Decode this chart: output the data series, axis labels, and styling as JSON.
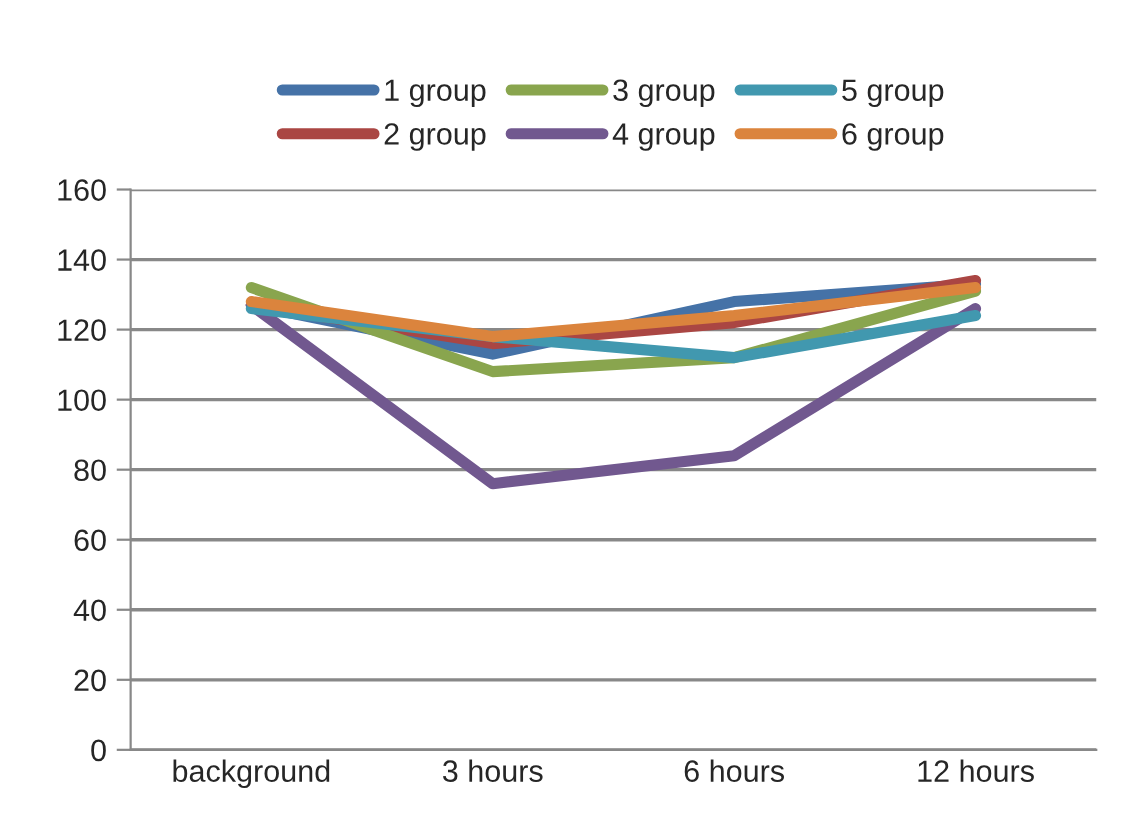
{
  "chart_data": {
    "type": "line",
    "categories": [
      "background",
      "3 hours",
      "6 hours",
      "12 hours"
    ],
    "series": [
      {
        "name": "1 group",
        "color": "#4572a7",
        "values": [
          127,
          113,
          128,
          133
        ]
      },
      {
        "name": "2 group",
        "color": "#aa4643",
        "values": [
          127,
          116,
          122,
          134
        ]
      },
      {
        "name": "3 group",
        "color": "#89a54e",
        "values": [
          132,
          108,
          112,
          131
        ]
      },
      {
        "name": "4 group",
        "color": "#71588f",
        "values": [
          127,
          76,
          84,
          126
        ]
      },
      {
        "name": "5 group",
        "color": "#4198af",
        "values": [
          126,
          118,
          112,
          124
        ]
      },
      {
        "name": "6 group",
        "color": "#db843d",
        "values": [
          128,
          118,
          124,
          132
        ]
      }
    ],
    "ylim": [
      0,
      160
    ],
    "yticks": [
      0,
      20,
      40,
      60,
      80,
      100,
      120,
      140,
      160
    ],
    "grid": "y",
    "legend": "top",
    "marker": "none",
    "line_style": "solid"
  }
}
